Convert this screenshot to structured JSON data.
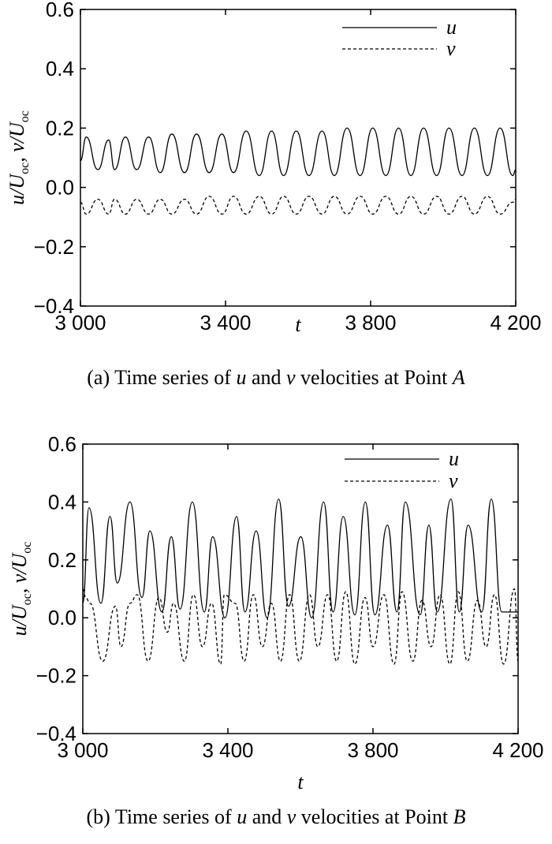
{
  "chart_data": [
    {
      "type": "line",
      "panel": "a",
      "caption": {
        "prefix": "(a) Time series of ",
        "var1": "u",
        "mid1": " and ",
        "var2": "v",
        "mid2": " velocities at Point ",
        "point": "A"
      },
      "xlabel": "t",
      "ylabel": "u/U_oc, v/U_oc",
      "xlim": [
        3000,
        4200
      ],
      "ylim": [
        -0.4,
        0.6
      ],
      "xticks": [
        3000,
        3400,
        3800,
        4200
      ],
      "xtick_labels": [
        "3 000",
        "3 400",
        "3 800",
        "4 200"
      ],
      "yticks": [
        -0.4,
        -0.2,
        0.0,
        0.2,
        0.4,
        0.6
      ],
      "ytick_labels": [
        "−0.4",
        "−0.2",
        "0.0",
        "0.2",
        "0.4",
        "0.6"
      ],
      "legend": {
        "position": "top-right"
      },
      "series": [
        {
          "name": "u",
          "style": "solid",
          "color": "#000000",
          "x": [
            3000,
            3016,
            3048,
            3078,
            3094,
            3124,
            3155,
            3188,
            3220,
            3252,
            3287,
            3320,
            3355,
            3390,
            3422,
            3457,
            3493,
            3527,
            3560,
            3595,
            3630,
            3666,
            3700,
            3735,
            3771,
            3806,
            3842,
            3877,
            3911,
            3946,
            3982,
            4016,
            4052,
            4086,
            4122,
            4157,
            4192,
            4200
          ],
          "values": [
            0.09,
            0.17,
            0.06,
            0.16,
            0.06,
            0.17,
            0.06,
            0.17,
            0.05,
            0.18,
            0.05,
            0.18,
            0.05,
            0.18,
            0.05,
            0.19,
            0.04,
            0.19,
            0.04,
            0.19,
            0.04,
            0.19,
            0.04,
            0.2,
            0.04,
            0.2,
            0.04,
            0.2,
            0.04,
            0.2,
            0.04,
            0.2,
            0.04,
            0.2,
            0.04,
            0.2,
            0.04,
            0.06
          ]
        },
        {
          "name": "v",
          "style": "dashed",
          "color": "#000000",
          "x": [
            3000,
            3016,
            3048,
            3078,
            3094,
            3124,
            3155,
            3188,
            3220,
            3252,
            3287,
            3320,
            3355,
            3390,
            3422,
            3457,
            3493,
            3527,
            3560,
            3595,
            3630,
            3666,
            3700,
            3735,
            3771,
            3806,
            3842,
            3877,
            3911,
            3946,
            3982,
            4016,
            4052,
            4086,
            4122,
            4157,
            4192,
            4200
          ],
          "values": [
            -0.05,
            -0.09,
            -0.04,
            -0.09,
            -0.04,
            -0.09,
            -0.04,
            -0.09,
            -0.04,
            -0.09,
            -0.04,
            -0.09,
            -0.03,
            -0.09,
            -0.03,
            -0.09,
            -0.03,
            -0.09,
            -0.03,
            -0.09,
            -0.03,
            -0.09,
            -0.03,
            -0.09,
            -0.03,
            -0.09,
            -0.03,
            -0.09,
            -0.03,
            -0.09,
            -0.03,
            -0.09,
            -0.03,
            -0.09,
            -0.03,
            -0.09,
            -0.05,
            -0.04
          ]
        }
      ]
    },
    {
      "type": "line",
      "panel": "b",
      "caption": {
        "prefix": "(b) Time series of ",
        "var1": "u",
        "mid1": " and ",
        "var2": "v",
        "mid2": " velocities at Point ",
        "point": "B"
      },
      "xlabel": "t",
      "ylabel": "u/U_oc, v/U_oc",
      "xlim": [
        3000,
        4200
      ],
      "ylim": [
        -0.4,
        0.6
      ],
      "xticks": [
        3000,
        3400,
        3800,
        4200
      ],
      "xtick_labels": [
        "3 000",
        "3 400",
        "3 800",
        "4 200"
      ],
      "yticks": [
        -0.4,
        -0.2,
        0.0,
        0.2,
        0.4,
        0.6
      ],
      "ytick_labels": [
        "−0.4",
        "−0.2",
        "0.0",
        "0.2",
        "0.4",
        "0.6"
      ],
      "legend": {
        "position": "top-right"
      },
      "series": [
        {
          "name": "u",
          "style": "solid",
          "color": "#000000",
          "x": [
            3000,
            3017,
            3050,
            3075,
            3095,
            3130,
            3163,
            3185,
            3218,
            3244,
            3268,
            3302,
            3335,
            3358,
            3392,
            3424,
            3447,
            3478,
            3508,
            3540,
            3567,
            3601,
            3631,
            3664,
            3690,
            3718,
            3750,
            3779,
            3805,
            3840,
            3866,
            3889,
            3930,
            3954,
            3977,
            4015,
            4038,
            4062,
            4100,
            4126,
            4155,
            4200
          ],
          "values": [
            0.05,
            0.38,
            0.05,
            0.35,
            0.12,
            0.4,
            0.07,
            0.3,
            0.02,
            0.28,
            0.03,
            0.4,
            0.02,
            0.28,
            0.0,
            0.35,
            0.02,
            0.3,
            0.0,
            0.41,
            0.04,
            0.28,
            0.0,
            0.4,
            0.02,
            0.35,
            0.01,
            0.4,
            0.01,
            0.32,
            0.02,
            0.4,
            0.01,
            0.32,
            0.02,
            0.41,
            0.02,
            0.32,
            0.02,
            0.41,
            0.02,
            0.02
          ]
        },
        {
          "name": "v",
          "style": "dashed",
          "color": "#000000",
          "x": [
            3000,
            3008,
            3020,
            3055,
            3090,
            3105,
            3130,
            3150,
            3180,
            3210,
            3233,
            3250,
            3280,
            3305,
            3330,
            3355,
            3380,
            3390,
            3420,
            3445,
            3470,
            3495,
            3520,
            3545,
            3570,
            3597,
            3625,
            3648,
            3675,
            3700,
            3725,
            3750,
            3778,
            3800,
            3830,
            3858,
            3880,
            3910,
            3935,
            3960,
            3985,
            4012,
            4035,
            4060,
            4088,
            4112,
            4135,
            4160,
            4190,
            4200
          ],
          "values": [
            0.1,
            0.07,
            0.05,
            -0.15,
            0.04,
            -0.1,
            0.05,
            0.08,
            -0.15,
            0.07,
            -0.05,
            0.05,
            -0.15,
            0.08,
            -0.1,
            0.05,
            -0.16,
            0.08,
            0.05,
            -0.15,
            0.08,
            -0.1,
            0.05,
            -0.15,
            0.08,
            -0.15,
            0.08,
            -0.1,
            0.08,
            -0.15,
            0.09,
            -0.16,
            0.07,
            -0.1,
            0.08,
            -0.16,
            0.09,
            -0.15,
            0.06,
            -0.1,
            0.08,
            -0.16,
            0.09,
            -0.15,
            0.06,
            -0.1,
            0.08,
            -0.16,
            0.1,
            -0.15
          ]
        }
      ]
    }
  ]
}
